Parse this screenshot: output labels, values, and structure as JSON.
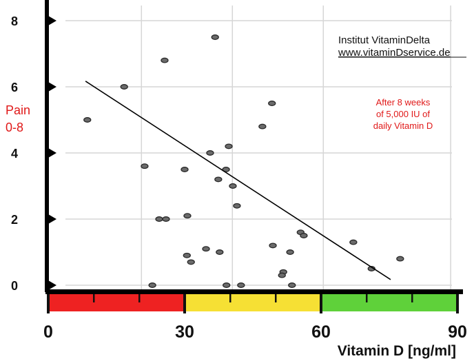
{
  "chart_data": {
    "type": "scatter",
    "title": "",
    "xlabel": "Vitamin D [ng/ml]",
    "ylabel_lines": [
      "Pain",
      "0-8"
    ],
    "xlim": [
      0,
      90
    ],
    "ylim": [
      0,
      8
    ],
    "x_ticks": [
      0,
      30,
      60,
      90
    ],
    "y_ticks": [
      0,
      2,
      4,
      6,
      8
    ],
    "grid": true,
    "points": [
      {
        "x": 8.6,
        "y": 5.0
      },
      {
        "x": 16.7,
        "y": 6.0
      },
      {
        "x": 25.6,
        "y": 6.8
      },
      {
        "x": 36.7,
        "y": 7.5
      },
      {
        "x": 21.2,
        "y": 3.6
      },
      {
        "x": 30.0,
        "y": 3.5
      },
      {
        "x": 24.4,
        "y": 2.0
      },
      {
        "x": 25.9,
        "y": 2.0
      },
      {
        "x": 30.6,
        "y": 2.1
      },
      {
        "x": 35.6,
        "y": 4.0
      },
      {
        "x": 39.7,
        "y": 4.2
      },
      {
        "x": 39.1,
        "y": 3.5
      },
      {
        "x": 37.4,
        "y": 3.2
      },
      {
        "x": 40.6,
        "y": 3.0
      },
      {
        "x": 41.5,
        "y": 2.4
      },
      {
        "x": 22.9,
        "y": 0.0
      },
      {
        "x": 39.2,
        "y": 0.0
      },
      {
        "x": 42.4,
        "y": 0.0
      },
      {
        "x": 30.5,
        "y": 0.9
      },
      {
        "x": 31.4,
        "y": 0.7
      },
      {
        "x": 34.7,
        "y": 1.1
      },
      {
        "x": 37.7,
        "y": 1.0
      },
      {
        "x": 49.2,
        "y": 5.5
      },
      {
        "x": 47.1,
        "y": 4.8
      },
      {
        "x": 49.4,
        "y": 1.2
      },
      {
        "x": 53.2,
        "y": 1.0
      },
      {
        "x": 51.7,
        "y": 0.4
      },
      {
        "x": 51.4,
        "y": 0.3
      },
      {
        "x": 53.6,
        "y": 0.0
      },
      {
        "x": 55.5,
        "y": 1.6
      },
      {
        "x": 56.2,
        "y": 1.5
      },
      {
        "x": 67.1,
        "y": 1.3
      },
      {
        "x": 71.1,
        "y": 0.5
      },
      {
        "x": 77.4,
        "y": 0.8
      }
    ],
    "trendline": {
      "x": [
        8.2,
        75.3
      ],
      "y": [
        6.17,
        0.17
      ]
    },
    "bands": [
      {
        "from": 0,
        "to": 30,
        "color": "#ee2222"
      },
      {
        "from": 30,
        "to": 60,
        "color": "#f6e034"
      },
      {
        "from": 60,
        "to": 90,
        "color": "#5fd13a"
      }
    ],
    "minor_ticks": [
      10,
      20,
      40,
      50,
      70,
      80
    ],
    "annotations": {
      "institute": "Institut VitaminDelta",
      "website": "www.vitaminDservice.de",
      "note_lines": [
        "After 8 weeks",
        "of 5,000 IU of",
        "daily Vitamin D"
      ]
    }
  }
}
